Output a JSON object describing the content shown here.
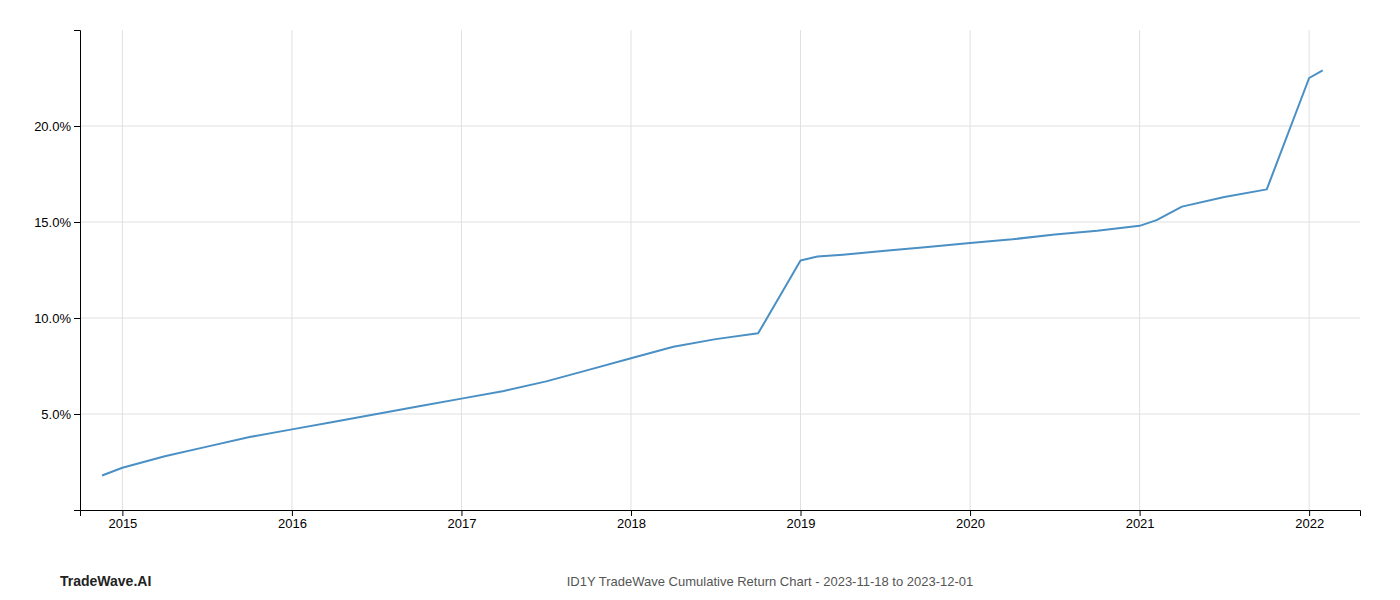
{
  "chart_data": {
    "type": "line",
    "title": "ID1Y TradeWave Cumulative Return Chart - 2023-11-18 to 2023-12-01",
    "annotations": [
      "TradeWave.AI"
    ],
    "color": "#4a90c4",
    "x": [
      2014.88,
      2015.0,
      2015.25,
      2015.5,
      2015.75,
      2016.0,
      2016.25,
      2016.5,
      2016.75,
      2017.0,
      2017.25,
      2017.5,
      2017.75,
      2018.0,
      2018.25,
      2018.5,
      2018.75,
      2019.0,
      2019.1,
      2019.25,
      2019.5,
      2019.75,
      2020.0,
      2020.25,
      2020.5,
      2020.75,
      2021.0,
      2021.1,
      2021.25,
      2021.5,
      2021.75,
      2022.0,
      2022.08
    ],
    "values": [
      1.8,
      2.2,
      2.8,
      3.3,
      3.8,
      4.2,
      4.6,
      5.0,
      5.4,
      5.8,
      6.2,
      6.7,
      7.3,
      7.9,
      8.5,
      8.9,
      9.2,
      13.0,
      13.2,
      13.3,
      13.5,
      13.7,
      13.9,
      14.1,
      14.35,
      14.55,
      14.8,
      15.1,
      15.8,
      16.3,
      16.7,
      22.5,
      22.9
    ],
    "xlim": [
      2014.75,
      2022.3
    ],
    "xticks": [
      2015,
      2016,
      2017,
      2018,
      2019,
      2020,
      2021,
      2022
    ],
    "ylim": [
      0,
      25
    ],
    "yticks": [
      {
        "value": 5.0,
        "label": "5.0%"
      },
      {
        "value": 10.0,
        "label": "10.0%"
      },
      {
        "value": 15.0,
        "label": "15.0%"
      },
      {
        "value": 20.0,
        "label": "20.0%"
      }
    ],
    "grid": true
  }
}
